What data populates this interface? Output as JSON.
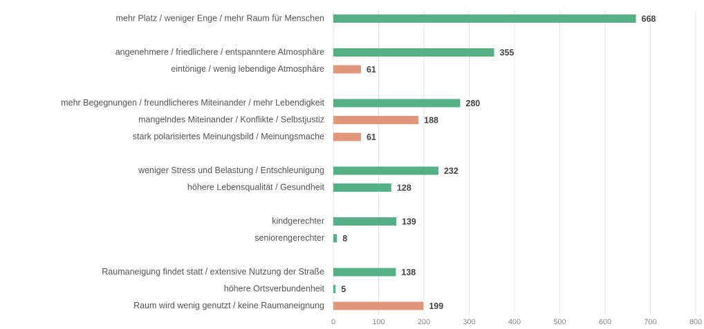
{
  "chart_data": {
    "type": "bar",
    "orientation": "horizontal",
    "categories": [
      "mehr Platz / weniger Enge / mehr Raum für Menschen",
      null,
      "angenehmere / friedlichere / entspanntere Atmosphäre",
      "eintönige / wenig lebendige Atmosphäre",
      null,
      "mehr Begegnungen / freundlicheres Miteinander / mehr Lebendigkeit",
      "mangelndes Miteinander / Konflikte / Selbstjustiz",
      "stark polarisiertes Meinungsbild / Meinungsmache",
      null,
      "weniger Stress und Belastung / Entschleunigung",
      "höhere Lebensqualität / Gesundheit",
      null,
      "kindgerechter",
      "seniorengerechter",
      null,
      "Raumaneigung findet statt / extensive Nutzung der Straße",
      "höhere Ortsverbundenheit",
      "Raum wird wenig genutzt / keine Raumaneignung"
    ],
    "values": [
      668,
      null,
      355,
      61,
      null,
      280,
      188,
      61,
      null,
      232,
      128,
      null,
      139,
      8,
      null,
      138,
      5,
      199
    ],
    "colors": [
      "#55b185",
      null,
      "#55b185",
      "#e0977b",
      null,
      "#55b185",
      "#e0977b",
      "#e0977b",
      null,
      "#55b185",
      "#55b185",
      null,
      "#55b185",
      "#55b185",
      null,
      "#55b185",
      "#55b185",
      "#e0977b"
    ],
    "xlim": [
      0,
      800
    ],
    "xticks": [
      0,
      100,
      200,
      300,
      400,
      500,
      600,
      700,
      800
    ],
    "grid": true
  }
}
